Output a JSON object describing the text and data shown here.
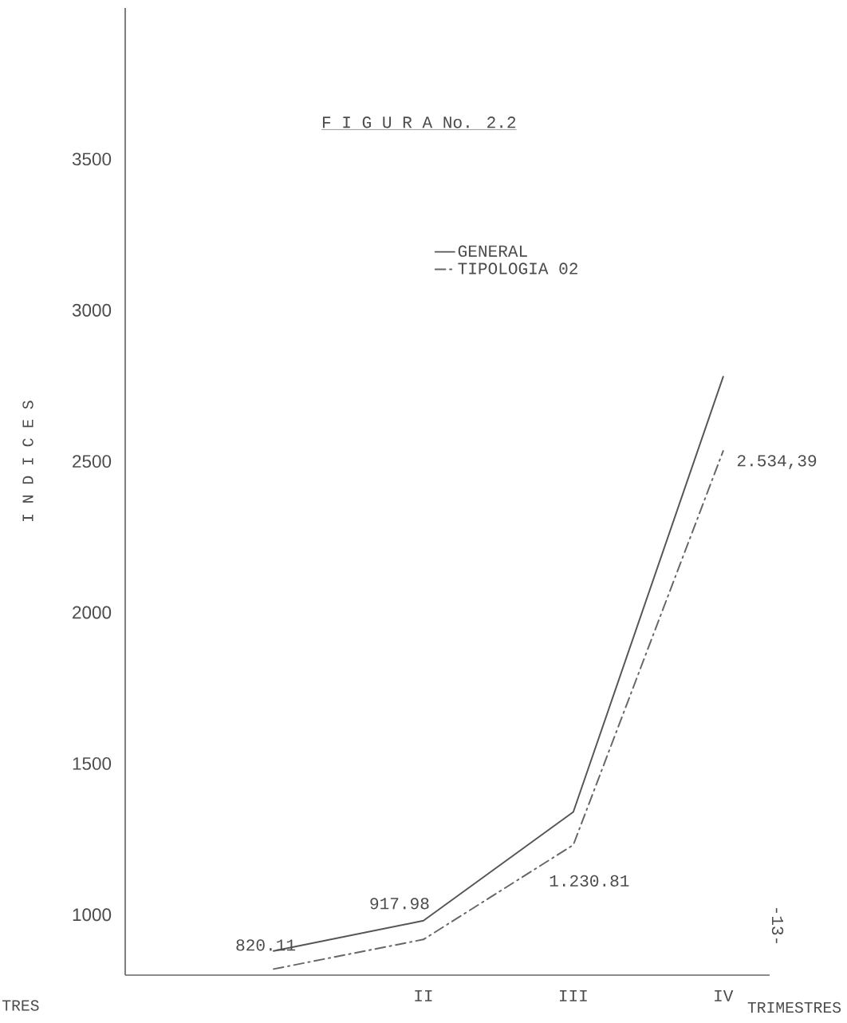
{
  "chart_data": {
    "type": "line",
    "title": "F I G U R A No. 2.2",
    "xlabel": "TRIMESTRES",
    "ylabel": "I N D I C E S",
    "categories": [
      null,
      "II",
      "III",
      "IV"
    ],
    "series": [
      {
        "name": "GENERAL",
        "color": "#555555",
        "line_style": "solid",
        "values": [
          880,
          980,
          1340,
          2780
        ]
      },
      {
        "name": "TIPOLOGIA  02",
        "color": "#666666",
        "line_style": "dashdot",
        "values": [
          820.11,
          917.98,
          1230.81,
          2534.39
        ],
        "value_labels": [
          "820.11",
          "917.98",
          "1.230.81",
          "2.534,39"
        ]
      }
    ],
    "ylim": [
      800,
      4000
    ],
    "yticks": [
      1000,
      1500,
      2000,
      2500,
      3000,
      3500
    ],
    "legend": "top right",
    "grid": false,
    "marker": "none",
    "annotations": [
      "TRES",
      "-13-"
    ]
  }
}
